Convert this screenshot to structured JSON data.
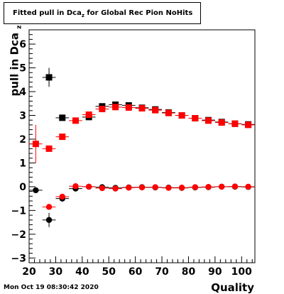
{
  "chart_data": {
    "type": "scatter",
    "title": "Fitted pull in Dca",
    "title_subscript": "z",
    "title_rest": " for Global Rec Pion NoHits",
    "xlabel": "Quality",
    "ylabel": "pull in Dca",
    "ylabel_subscript": "z",
    "xlim": [
      20,
      105
    ],
    "ylim": [
      -3.2,
      6.6
    ],
    "xticks": [
      20,
      30,
      40,
      50,
      60,
      70,
      80,
      90,
      100
    ],
    "yticks": [
      -3,
      -2,
      -1,
      0,
      1,
      2,
      3,
      4,
      5,
      6
    ],
    "grid": false,
    "series": [
      {
        "marker": "square",
        "color": "#000000",
        "points": [
          [
            32.5,
            2.9
          ],
          [
            27.5,
            4.6
          ],
          [
            42.5,
            2.93
          ],
          [
            47.5,
            3.38
          ],
          [
            52.5,
            3.45
          ],
          [
            57.5,
            3.42
          ],
          [
            62.5,
            3.32
          ],
          [
            67.5,
            3.25
          ],
          [
            72.5,
            3.12
          ],
          [
            77.5,
            3.0
          ],
          [
            82.5,
            2.88
          ],
          [
            87.5,
            2.8
          ],
          [
            92.5,
            2.72
          ],
          [
            97.5,
            2.65
          ],
          [
            102.5,
            2.62
          ]
        ],
        "yerr": [
          0.08,
          0.4,
          0.06,
          0.05,
          0.05,
          0.04,
          0.04,
          0.04,
          0.04,
          0.04,
          0.04,
          0.04,
          0.04,
          0.04,
          0.04
        ]
      },
      {
        "marker": "square",
        "color": "#ff0000",
        "points": [
          [
            22.5,
            1.8
          ],
          [
            27.5,
            1.6
          ],
          [
            32.5,
            2.1
          ],
          [
            37.5,
            2.78
          ],
          [
            42.5,
            3.03
          ],
          [
            47.5,
            3.27
          ],
          [
            52.5,
            3.35
          ],
          [
            57.5,
            3.33
          ],
          [
            62.5,
            3.3
          ],
          [
            67.5,
            3.22
          ],
          [
            72.5,
            3.1
          ],
          [
            77.5,
            3.0
          ],
          [
            82.5,
            2.88
          ],
          [
            87.5,
            2.78
          ],
          [
            92.5,
            2.7
          ],
          [
            97.5,
            2.65
          ],
          [
            102.5,
            2.6
          ]
        ],
        "yerr": [
          0.8,
          0.1,
          0.08,
          0.06,
          0.05,
          0.05,
          0.04,
          0.04,
          0.04,
          0.04,
          0.04,
          0.04,
          0.04,
          0.04,
          0.04,
          0.04,
          0.04
        ]
      },
      {
        "marker": "circle",
        "color": "#000000",
        "points": [
          [
            22.5,
            -0.15
          ],
          [
            27.5,
            -1.4
          ],
          [
            32.5,
            -0.5
          ],
          [
            37.5,
            -0.08
          ],
          [
            42.5,
            0.0
          ],
          [
            47.5,
            -0.02
          ],
          [
            52.5,
            -0.05
          ],
          [
            57.5,
            -0.03
          ],
          [
            62.5,
            -0.02
          ],
          [
            67.5,
            -0.03
          ],
          [
            72.5,
            -0.04
          ],
          [
            77.5,
            -0.05
          ],
          [
            82.5,
            -0.03
          ],
          [
            87.5,
            -0.02
          ],
          [
            92.5,
            0.0
          ],
          [
            97.5,
            0.0
          ],
          [
            102.5,
            -0.01
          ]
        ],
        "yerr": [
          0.1,
          0.3,
          0.08,
          0.05,
          0.04,
          0.04,
          0.04,
          0.03,
          0.03,
          0.03,
          0.03,
          0.03,
          0.03,
          0.03,
          0.03,
          0.03,
          0.03
        ]
      },
      {
        "marker": "circle",
        "color": "#ff0000",
        "points": [
          [
            27.5,
            -0.85
          ],
          [
            32.5,
            -0.42
          ],
          [
            37.5,
            0.02
          ],
          [
            42.5,
            0.0
          ],
          [
            47.5,
            -0.06
          ],
          [
            52.5,
            -0.08
          ],
          [
            57.5,
            -0.04
          ],
          [
            62.5,
            -0.03
          ],
          [
            67.5,
            -0.02
          ],
          [
            72.5,
            -0.05
          ],
          [
            77.5,
            -0.04
          ],
          [
            82.5,
            -0.02
          ],
          [
            87.5,
            -0.01
          ],
          [
            92.5,
            0.0
          ],
          [
            97.5,
            0.01
          ],
          [
            102.5,
            0.0
          ]
        ],
        "yerr": [
          0.06,
          0.05,
          0.04,
          0.04,
          0.04,
          0.04,
          0.03,
          0.03,
          0.03,
          0.03,
          0.03,
          0.03,
          0.03,
          0.03,
          0.03,
          0.03
        ]
      }
    ]
  },
  "footer": {
    "timestamp": "Mon Oct 19 08:30:42 2020"
  }
}
